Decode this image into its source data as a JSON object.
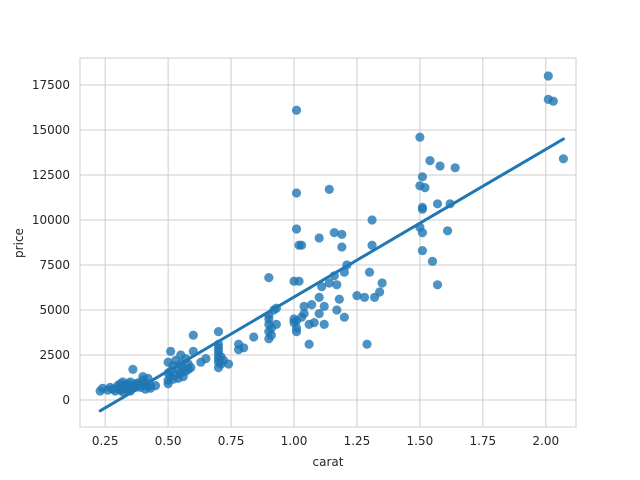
{
  "chart_data": {
    "type": "scatter",
    "xlabel": "carat",
    "ylabel": "price",
    "xlim": [
      0.15,
      2.12
    ],
    "ylim": [
      -1500,
      19000
    ],
    "xticks": [
      0.25,
      0.5,
      0.75,
      1.0,
      1.25,
      1.5,
      1.75,
      2.0
    ],
    "xtick_labels": [
      "0.25",
      "0.50",
      "0.75",
      "1.00",
      "1.25",
      "1.50",
      "1.75",
      "2.00"
    ],
    "yticks": [
      0,
      2500,
      5000,
      7500,
      10000,
      12500,
      15000,
      17500
    ],
    "ytick_labels": [
      "0",
      "2500",
      "5000",
      "7500",
      "10000",
      "12500",
      "15000",
      "17500"
    ],
    "grid": true,
    "style": "whitegrid",
    "colors": {
      "points": "#1f77b4",
      "line": "#1f77b4",
      "grid": "#cccccc",
      "spine": "#cccccc"
    },
    "points": [
      [
        0.23,
        500
      ],
      [
        0.24,
        650
      ],
      [
        0.26,
        550
      ],
      [
        0.27,
        700
      ],
      [
        0.28,
        600
      ],
      [
        0.29,
        500
      ],
      [
        0.3,
        650
      ],
      [
        0.3,
        800
      ],
      [
        0.31,
        550
      ],
      [
        0.31,
        700
      ],
      [
        0.31,
        900
      ],
      [
        0.32,
        450
      ],
      [
        0.32,
        600
      ],
      [
        0.32,
        1000
      ],
      [
        0.33,
        700
      ],
      [
        0.33,
        850
      ],
      [
        0.34,
        600
      ],
      [
        0.34,
        900
      ],
      [
        0.35,
        500
      ],
      [
        0.35,
        750
      ],
      [
        0.35,
        1000
      ],
      [
        0.36,
        650
      ],
      [
        0.36,
        1700
      ],
      [
        0.37,
        700
      ],
      [
        0.37,
        900
      ],
      [
        0.38,
        800
      ],
      [
        0.38,
        950
      ],
      [
        0.39,
        700
      ],
      [
        0.4,
        1100
      ],
      [
        0.4,
        850
      ],
      [
        0.4,
        1300
      ],
      [
        0.41,
        600
      ],
      [
        0.41,
        950
      ],
      [
        0.42,
        750
      ],
      [
        0.42,
        1200
      ],
      [
        0.43,
        800
      ],
      [
        0.43,
        650
      ],
      [
        0.45,
        800
      ],
      [
        0.5,
        900
      ],
      [
        0.5,
        1100
      ],
      [
        0.5,
        1500
      ],
      [
        0.5,
        2100
      ],
      [
        0.51,
        1300
      ],
      [
        0.51,
        1600
      ],
      [
        0.51,
        2700
      ],
      [
        0.52,
        1150
      ],
      [
        0.52,
        1900
      ],
      [
        0.53,
        1400
      ],
      [
        0.53,
        2200
      ],
      [
        0.54,
        1200
      ],
      [
        0.54,
        1700
      ],
      [
        0.55,
        1500
      ],
      [
        0.55,
        2000
      ],
      [
        0.55,
        2500
      ],
      [
        0.56,
        1300
      ],
      [
        0.56,
        1800
      ],
      [
        0.57,
        1600
      ],
      [
        0.57,
        2300
      ],
      [
        0.58,
        1700
      ],
      [
        0.58,
        2000
      ],
      [
        0.59,
        1800
      ],
      [
        0.6,
        2700
      ],
      [
        0.6,
        3600
      ],
      [
        0.63,
        2100
      ],
      [
        0.65,
        2300
      ],
      [
        0.7,
        1800
      ],
      [
        0.7,
        2100
      ],
      [
        0.7,
        2300
      ],
      [
        0.7,
        2500
      ],
      [
        0.7,
        2700
      ],
      [
        0.7,
        2900
      ],
      [
        0.7,
        3100
      ],
      [
        0.7,
        3800
      ],
      [
        0.71,
        2000
      ],
      [
        0.71,
        2400
      ],
      [
        0.72,
        2200
      ],
      [
        0.74,
        2000
      ],
      [
        0.78,
        2800
      ],
      [
        0.78,
        3100
      ],
      [
        0.8,
        2900
      ],
      [
        0.84,
        3500
      ],
      [
        0.9,
        3400
      ],
      [
        0.9,
        3800
      ],
      [
        0.9,
        4200
      ],
      [
        0.9,
        4500
      ],
      [
        0.9,
        4700
      ],
      [
        0.9,
        6800
      ],
      [
        0.91,
        3600
      ],
      [
        0.91,
        4000
      ],
      [
        0.92,
        5000
      ],
      [
        0.93,
        4200
      ],
      [
        0.93,
        5100
      ],
      [
        1.0,
        4300
      ],
      [
        1.0,
        4500
      ],
      [
        1.0,
        6600
      ],
      [
        1.01,
        3800
      ],
      [
        1.01,
        4000
      ],
      [
        1.01,
        4400
      ],
      [
        1.01,
        9500
      ],
      [
        1.01,
        11500
      ],
      [
        1.01,
        16100
      ],
      [
        1.02,
        6600
      ],
      [
        1.02,
        8600
      ],
      [
        1.03,
        4600
      ],
      [
        1.03,
        8600
      ],
      [
        1.04,
        4800
      ],
      [
        1.04,
        5200
      ],
      [
        1.06,
        3100
      ],
      [
        1.06,
        4200
      ],
      [
        1.07,
        5300
      ],
      [
        1.08,
        4300
      ],
      [
        1.1,
        9000
      ],
      [
        1.1,
        4800
      ],
      [
        1.1,
        5700
      ],
      [
        1.11,
        6300
      ],
      [
        1.12,
        4200
      ],
      [
        1.12,
        5200
      ],
      [
        1.14,
        11700
      ],
      [
        1.14,
        6500
      ],
      [
        1.16,
        6900
      ],
      [
        1.16,
        9300
      ],
      [
        1.17,
        5000
      ],
      [
        1.17,
        6400
      ],
      [
        1.18,
        5600
      ],
      [
        1.19,
        9200
      ],
      [
        1.19,
        8500
      ],
      [
        1.2,
        4600
      ],
      [
        1.2,
        7100
      ],
      [
        1.21,
        7500
      ],
      [
        1.25,
        5800
      ],
      [
        1.28,
        5700
      ],
      [
        1.29,
        3100
      ],
      [
        1.3,
        7100
      ],
      [
        1.31,
        10000
      ],
      [
        1.31,
        8600
      ],
      [
        1.32,
        5700
      ],
      [
        1.34,
        6000
      ],
      [
        1.35,
        6500
      ],
      [
        1.5,
        14600
      ],
      [
        1.5,
        11900
      ],
      [
        1.5,
        9600
      ],
      [
        1.51,
        12400
      ],
      [
        1.51,
        10600
      ],
      [
        1.51,
        10700
      ],
      [
        1.51,
        9300
      ],
      [
        1.51,
        8300
      ],
      [
        1.52,
        11800
      ],
      [
        1.54,
        13300
      ],
      [
        1.55,
        7700
      ],
      [
        1.57,
        6400
      ],
      [
        1.57,
        10900
      ],
      [
        1.58,
        13000
      ],
      [
        1.61,
        9400
      ],
      [
        1.62,
        10900
      ],
      [
        1.64,
        12900
      ],
      [
        2.01,
        18000
      ],
      [
        2.01,
        16700
      ],
      [
        2.03,
        16600
      ],
      [
        2.07,
        13400
      ]
    ],
    "regression": {
      "x": [
        0.23,
        2.07
      ],
      "y": [
        -600,
        14500
      ]
    }
  }
}
